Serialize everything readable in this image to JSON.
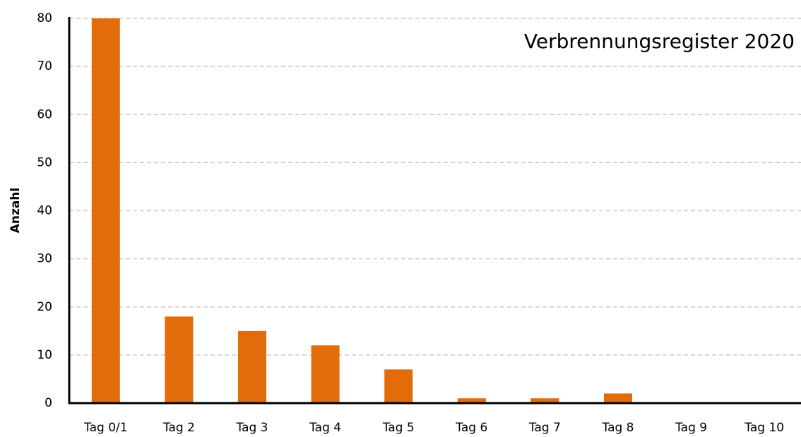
{
  "chart_data": {
    "type": "bar",
    "title": "Verbrennungsregister 2020",
    "y_label": "Anzahl",
    "categories": [
      "Tag 0/1",
      "Tag 2",
      "Tag 3",
      "Tag 4",
      "Tag 5",
      "Tag 6",
      "Tag 7",
      "Tag 8",
      "Tag 9",
      "Tag 10"
    ],
    "values": [
      80,
      18,
      15,
      12,
      7,
      1,
      1,
      2,
      0,
      0
    ],
    "color": "#e36c0a",
    "ylim": [
      0,
      80
    ],
    "yticks": [
      0,
      10,
      20,
      30,
      40,
      50,
      60,
      70,
      80
    ],
    "grid": true
  }
}
